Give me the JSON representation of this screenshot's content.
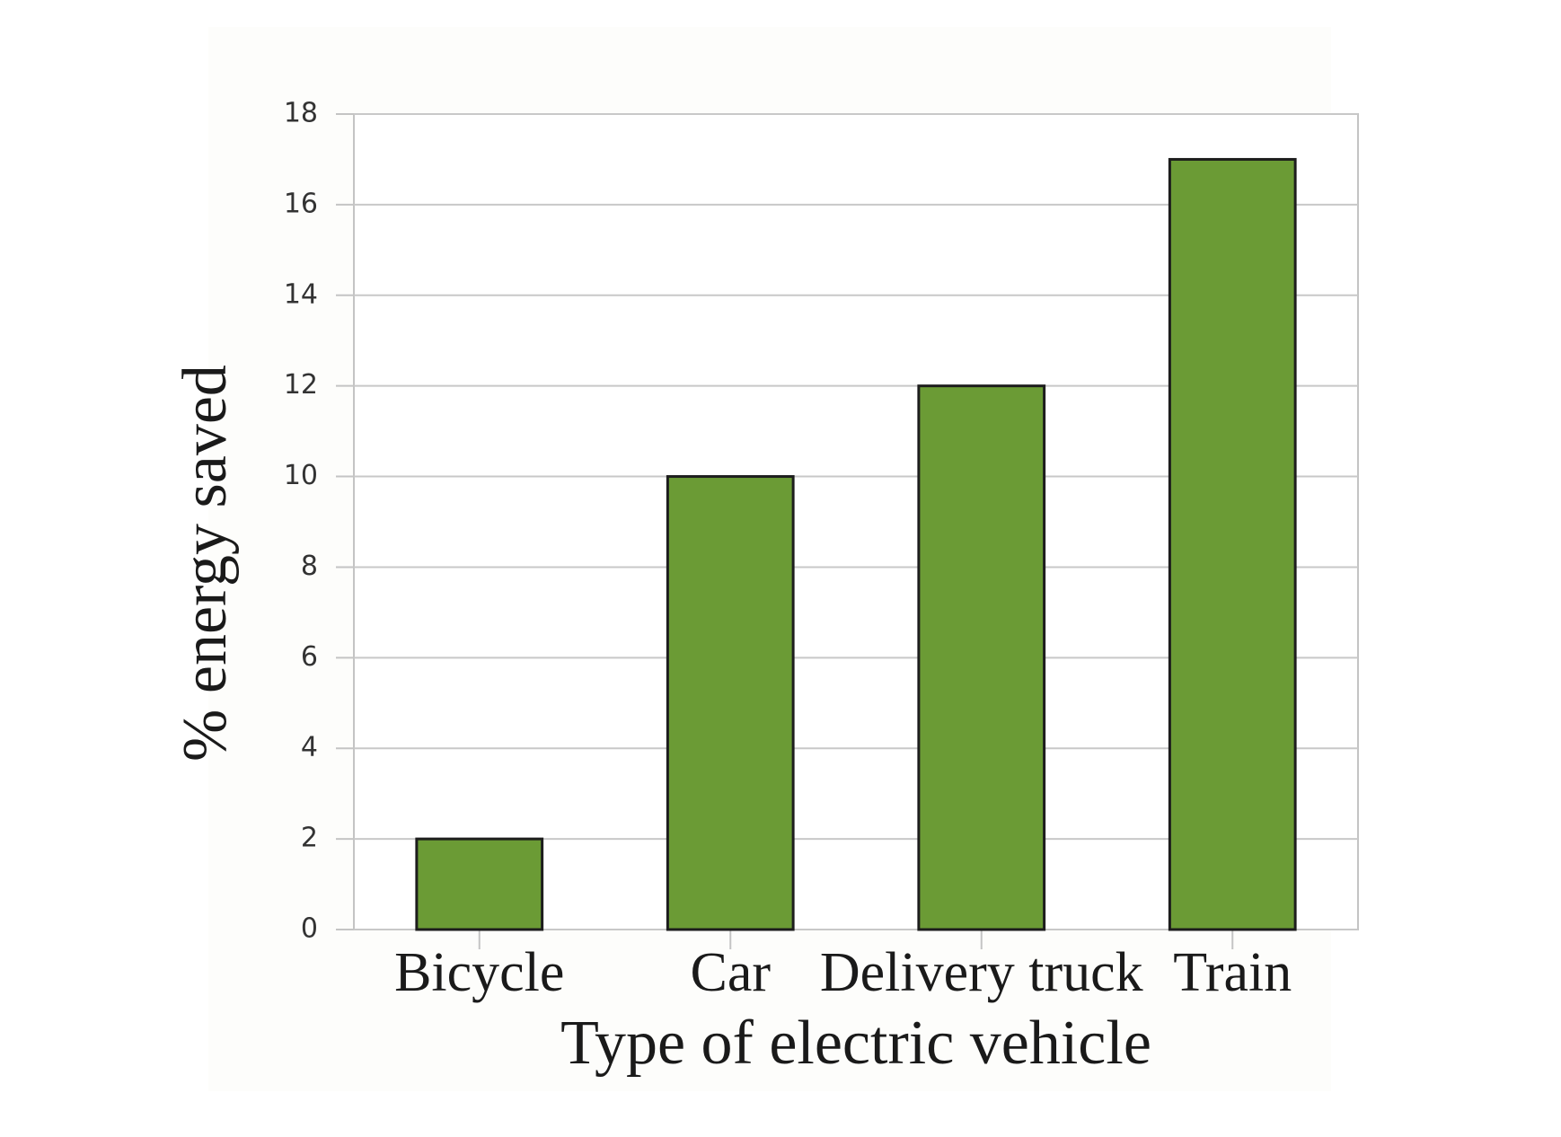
{
  "chart_data": {
    "type": "bar",
    "categories": [
      "Bicycle",
      "Car",
      "Delivery truck",
      "Train"
    ],
    "values": [
      2,
      10,
      12,
      17
    ],
    "color": "#6b9b35",
    "x_label": "Type of electric vehicle",
    "y_label": "% energy saved",
    "ylim": [
      0,
      18
    ],
    "yticks": [
      0,
      2,
      4,
      6,
      8,
      10,
      12,
      14,
      16,
      18
    ],
    "grid": true
  }
}
